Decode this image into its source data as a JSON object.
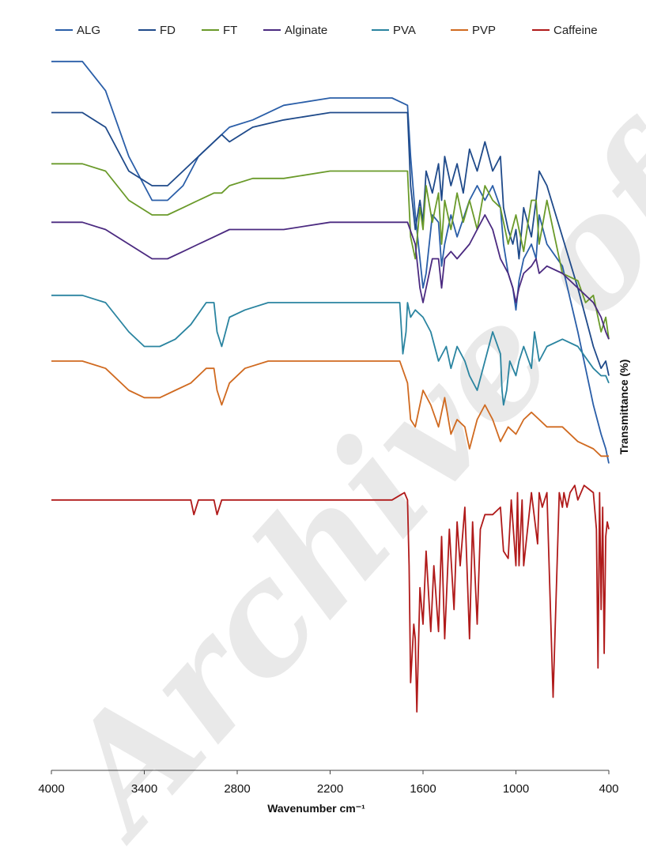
{
  "chart_data": {
    "type": "line",
    "title": "",
    "xlabel": "Wavenumber cm⁻¹",
    "ylabel": "Transmittance (%)",
    "xlim": [
      4000,
      400
    ],
    "x_reversed": true,
    "x_ticks": [
      4000,
      3400,
      2800,
      2200,
      1600,
      1000,
      400
    ],
    "y_ticks_shown": false,
    "grid": false,
    "legend_position": "top",
    "series": [
      {
        "name": "ALG",
        "color": "#2a5ea8",
        "x": [
          4000,
          3800,
          3650,
          3500,
          3350,
          3250,
          3150,
          3050,
          2950,
          2850,
          2700,
          2500,
          2200,
          2000,
          1800,
          1700,
          1680,
          1650,
          1620,
          1600,
          1580,
          1540,
          1500,
          1480,
          1460,
          1420,
          1380,
          1300,
          1250,
          1200,
          1150,
          1100,
          1080,
          1050,
          1020,
          1000,
          980,
          950,
          900,
          870,
          850,
          800,
          700,
          600,
          500,
          450,
          420,
          400
        ],
        "y": [
          97,
          97,
          93,
          84,
          78,
          78,
          80,
          84,
          86,
          88,
          89,
          91,
          92,
          92,
          92,
          91,
          84,
          76,
          70,
          66,
          68,
          76,
          75,
          69,
          72,
          76,
          73,
          78,
          80,
          78,
          80,
          77,
          72,
          68,
          66,
          63,
          67,
          70,
          72,
          70,
          76,
          72,
          69,
          60,
          50,
          46,
          44,
          42
        ]
      },
      {
        "name": "FD",
        "color": "#1f4a8a",
        "x": [
          4000,
          3800,
          3650,
          3500,
          3350,
          3250,
          3150,
          3050,
          2950,
          2900,
          2850,
          2700,
          2500,
          2200,
          2000,
          1800,
          1700,
          1680,
          1650,
          1620,
          1600,
          1580,
          1540,
          1500,
          1480,
          1460,
          1420,
          1380,
          1340,
          1300,
          1250,
          1200,
          1150,
          1100,
          1080,
          1050,
          1020,
          1000,
          980,
          950,
          900,
          870,
          850,
          800,
          700,
          600,
          550,
          500,
          450,
          420,
          400
        ],
        "y": [
          90,
          90,
          88,
          82,
          80,
          80,
          82,
          84,
          86,
          87,
          86,
          88,
          89,
          90,
          90,
          90,
          90,
          80,
          74,
          78,
          75,
          82,
          79,
          83,
          78,
          84,
          80,
          83,
          79,
          85,
          82,
          86,
          82,
          84,
          77,
          74,
          72,
          74,
          70,
          77,
          73,
          78,
          82,
          80,
          73,
          66,
          62,
          58,
          55,
          56,
          54
        ]
      },
      {
        "name": "FT",
        "color": "#6a9a2a",
        "x": [
          4000,
          3800,
          3650,
          3500,
          3350,
          3250,
          3150,
          3050,
          2950,
          2900,
          2850,
          2700,
          2500,
          2200,
          2000,
          1800,
          1700,
          1680,
          1650,
          1620,
          1600,
          1580,
          1540,
          1500,
          1480,
          1460,
          1420,
          1380,
          1340,
          1300,
          1250,
          1200,
          1150,
          1100,
          1050,
          1000,
          950,
          900,
          870,
          850,
          800,
          700,
          600,
          550,
          500,
          450,
          420,
          400
        ],
        "y": [
          83,
          83,
          82,
          78,
          76,
          76,
          77,
          78,
          79,
          79,
          80,
          81,
          81,
          82,
          82,
          82,
          82,
          73,
          70,
          77,
          74,
          80,
          75,
          79,
          72,
          78,
          74,
          79,
          75,
          78,
          74,
          80,
          78,
          77,
          72,
          76,
          71,
          78,
          78,
          72,
          78,
          68,
          67,
          64,
          65,
          60,
          62,
          59
        ]
      },
      {
        "name": "Alginate",
        "color": "#4b2a80",
        "x": [
          4000,
          3800,
          3650,
          3500,
          3350,
          3250,
          3150,
          3050,
          2950,
          2850,
          2700,
          2500,
          2200,
          2000,
          1800,
          1700,
          1650,
          1620,
          1600,
          1580,
          1540,
          1500,
          1480,
          1460,
          1420,
          1380,
          1300,
          1250,
          1200,
          1150,
          1100,
          1050,
          1020,
          1000,
          980,
          950,
          900,
          870,
          850,
          800,
          700,
          600,
          500,
          450,
          420,
          400
        ],
        "y": [
          75,
          75,
          74,
          72,
          70,
          70,
          71,
          72,
          73,
          74,
          74,
          74,
          75,
          75,
          75,
          75,
          72,
          66,
          64,
          66,
          70,
          70,
          66,
          70,
          71,
          70,
          72,
          74,
          76,
          74,
          70,
          68,
          66,
          64,
          66,
          68,
          69,
          70,
          68,
          69,
          68,
          66,
          64,
          62,
          60,
          59
        ]
      },
      {
        "name": "PVA",
        "color": "#2a84a0",
        "x": [
          4000,
          3800,
          3650,
          3500,
          3400,
          3300,
          3200,
          3100,
          3000,
          2950,
          2930,
          2900,
          2850,
          2750,
          2600,
          2400,
          2200,
          2000,
          1800,
          1750,
          1730,
          1710,
          1700,
          1680,
          1650,
          1600,
          1550,
          1500,
          1450,
          1420,
          1380,
          1330,
          1300,
          1250,
          1200,
          1150,
          1100,
          1090,
          1080,
          1060,
          1040,
          1000,
          980,
          950,
          900,
          880,
          850,
          800,
          700,
          600,
          500,
          450,
          420,
          400
        ],
        "y": [
          65,
          65,
          64,
          60,
          58,
          58,
          59,
          61,
          64,
          64,
          60,
          58,
          62,
          63,
          64,
          64,
          64,
          64,
          64,
          64,
          57,
          60,
          64,
          62,
          63,
          62,
          60,
          56,
          58,
          55,
          58,
          56,
          54,
          52,
          56,
          60,
          57,
          52,
          50,
          52,
          56,
          54,
          56,
          58,
          55,
          60,
          56,
          58,
          59,
          58,
          55,
          54,
          54,
          53
        ]
      },
      {
        "name": "PVP",
        "color": "#d06a20",
        "x": [
          4000,
          3800,
          3650,
          3500,
          3400,
          3300,
          3200,
          3100,
          3000,
          2950,
          2930,
          2900,
          2850,
          2750,
          2600,
          2400,
          2200,
          2000,
          1800,
          1750,
          1700,
          1680,
          1650,
          1600,
          1550,
          1500,
          1460,
          1420,
          1380,
          1330,
          1300,
          1250,
          1200,
          1150,
          1100,
          1050,
          1000,
          950,
          900,
          850,
          800,
          700,
          600,
          500,
          450,
          420,
          400
        ],
        "y": [
          56,
          56,
          55,
          52,
          51,
          51,
          52,
          53,
          55,
          55,
          52,
          50,
          53,
          55,
          56,
          56,
          56,
          56,
          56,
          56,
          53,
          48,
          47,
          52,
          50,
          47,
          51,
          46,
          48,
          47,
          44,
          48,
          50,
          48,
          45,
          47,
          46,
          48,
          49,
          48,
          47,
          47,
          45,
          44,
          43,
          43,
          43
        ]
      },
      {
        "name": "Caffeine",
        "color": "#b01a1a",
        "x": [
          4000,
          3800,
          3600,
          3400,
          3200,
          3100,
          3080,
          3050,
          3000,
          2950,
          2930,
          2900,
          2800,
          2600,
          2400,
          2200,
          2000,
          1800,
          1720,
          1700,
          1690,
          1680,
          1660,
          1650,
          1640,
          1620,
          1600,
          1580,
          1550,
          1530,
          1500,
          1480,
          1460,
          1430,
          1400,
          1380,
          1360,
          1330,
          1300,
          1280,
          1250,
          1230,
          1200,
          1150,
          1100,
          1080,
          1050,
          1030,
          1000,
          990,
          980,
          960,
          950,
          900,
          860,
          850,
          830,
          800,
          760,
          720,
          700,
          690,
          670,
          650,
          620,
          600,
          560,
          500,
          480,
          470,
          460,
          450,
          440,
          430,
          420,
          410,
          400
        ],
        "y": [
          37,
          37,
          37,
          37,
          37,
          37,
          35,
          37,
          37,
          37,
          35,
          37,
          37,
          37,
          37,
          37,
          37,
          37,
          38,
          37,
          28,
          12,
          20,
          18,
          8,
          25,
          20,
          30,
          19,
          28,
          19,
          32,
          18,
          33,
          22,
          34,
          28,
          36,
          18,
          34,
          20,
          33,
          35,
          35,
          36,
          30,
          29,
          37,
          28,
          38,
          28,
          37,
          28,
          38,
          31,
          38,
          36,
          38,
          10,
          38,
          36,
          38,
          36,
          38,
          39,
          37,
          39,
          38,
          33,
          14,
          38,
          22,
          36,
          16,
          32,
          34,
          33
        ]
      }
    ]
  },
  "watermark": "Archive of SID"
}
